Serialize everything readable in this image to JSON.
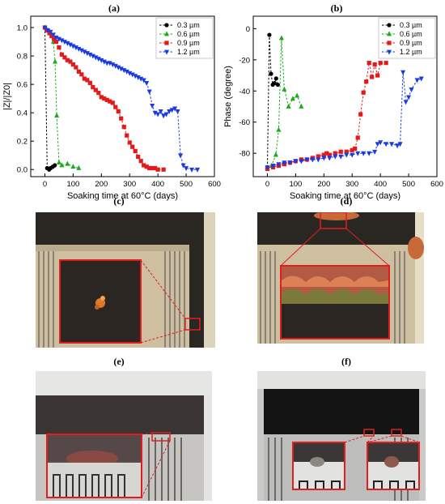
{
  "panel_labels": {
    "a": "(a)",
    "b": "(b)",
    "c": "(c)",
    "d": "(d)",
    "e": "(e)",
    "f": "(f)"
  },
  "chart_data": [
    {
      "type": "line",
      "ylabel": "|Z|/|Z0|",
      "xlabel": "Soaking time at 60°C (days)",
      "xlim": [
        -50,
        600
      ],
      "ylim": [
        -0.05,
        1.08
      ],
      "xticks": [
        0,
        100,
        200,
        300,
        400,
        500,
        600
      ],
      "yticks": [
        0.0,
        0.2,
        0.4,
        0.6,
        0.8,
        1.0
      ],
      "ytick_labels": [
        "0.0",
        "0.2",
        "0.4",
        "0.6",
        "0.8",
        "1.0"
      ],
      "legend_position": "top-right",
      "series": [
        {
          "name": "0.3 µm",
          "color": "#000000",
          "marker": "circle",
          "points": [
            [
              0,
              1.0
            ],
            [
              8,
              0.01
            ],
            [
              15,
              0.0
            ],
            [
              20,
              0.01
            ],
            [
              28,
              0.02
            ],
            [
              35,
              0.03
            ]
          ]
        },
        {
          "name": "0.6 µm",
          "color": "#1aaa1a",
          "marker": "triangle-up",
          "points": [
            [
              0,
              1.0
            ],
            [
              6,
              0.99
            ],
            [
              12,
              0.98
            ],
            [
              18,
              0.97
            ],
            [
              24,
              0.95
            ],
            [
              30,
              0.9
            ],
            [
              36,
              0.76
            ],
            [
              42,
              0.38
            ],
            [
              50,
              0.05
            ],
            [
              60,
              0.03
            ],
            [
              80,
              0.04
            ],
            [
              100,
              0.02
            ],
            [
              120,
              0.01
            ]
          ]
        },
        {
          "name": "0.9 µm",
          "color": "#e41a1a",
          "marker": "square",
          "points": [
            [
              0,
              1.0
            ],
            [
              8,
              0.98
            ],
            [
              16,
              0.96
            ],
            [
              24,
              0.94
            ],
            [
              32,
              0.92
            ],
            [
              40,
              0.9
            ],
            [
              50,
              0.86
            ],
            [
              60,
              0.81
            ],
            [
              70,
              0.79
            ],
            [
              80,
              0.77
            ],
            [
              90,
              0.76
            ],
            [
              100,
              0.74
            ],
            [
              110,
              0.72
            ],
            [
              120,
              0.69
            ],
            [
              130,
              0.67
            ],
            [
              140,
              0.64
            ],
            [
              150,
              0.63
            ],
            [
              160,
              0.61
            ],
            [
              170,
              0.58
            ],
            [
              180,
              0.56
            ],
            [
              190,
              0.54
            ],
            [
              200,
              0.51
            ],
            [
              210,
              0.5
            ],
            [
              220,
              0.49
            ],
            [
              230,
              0.48
            ],
            [
              240,
              0.47
            ],
            [
              250,
              0.44
            ],
            [
              260,
              0.41
            ],
            [
              270,
              0.36
            ],
            [
              280,
              0.3
            ],
            [
              290,
              0.24
            ],
            [
              300,
              0.19
            ],
            [
              310,
              0.16
            ],
            [
              320,
              0.13
            ],
            [
              330,
              0.09
            ],
            [
              340,
              0.06
            ],
            [
              350,
              0.03
            ],
            [
              360,
              0.02
            ],
            [
              370,
              0.01
            ],
            [
              380,
              0.01
            ],
            [
              390,
              0.01
            ],
            [
              400,
              0.0
            ],
            [
              420,
              0.0
            ]
          ]
        },
        {
          "name": "1.2 µm",
          "color": "#1a3ae4",
          "marker": "triangle-down",
          "points": [
            [
              0,
              1.0
            ],
            [
              10,
              0.98
            ],
            [
              20,
              0.97
            ],
            [
              30,
              0.95
            ],
            [
              40,
              0.93
            ],
            [
              50,
              0.92
            ],
            [
              60,
              0.91
            ],
            [
              70,
              0.9
            ],
            [
              80,
              0.89
            ],
            [
              90,
              0.88
            ],
            [
              100,
              0.87
            ],
            [
              110,
              0.86
            ],
            [
              120,
              0.85
            ],
            [
              130,
              0.84
            ],
            [
              140,
              0.83
            ],
            [
              150,
              0.82
            ],
            [
              160,
              0.81
            ],
            [
              170,
              0.8
            ],
            [
              180,
              0.79
            ],
            [
              190,
              0.78
            ],
            [
              200,
              0.77
            ],
            [
              210,
              0.76
            ],
            [
              220,
              0.75
            ],
            [
              230,
              0.75
            ],
            [
              240,
              0.74
            ],
            [
              250,
              0.73
            ],
            [
              260,
              0.72
            ],
            [
              270,
              0.71
            ],
            [
              280,
              0.7
            ],
            [
              290,
              0.69
            ],
            [
              300,
              0.68
            ],
            [
              310,
              0.67
            ],
            [
              320,
              0.66
            ],
            [
              330,
              0.65
            ],
            [
              340,
              0.64
            ],
            [
              350,
              0.63
            ],
            [
              360,
              0.61
            ],
            [
              370,
              0.55
            ],
            [
              380,
              0.45
            ],
            [
              390,
              0.4
            ],
            [
              400,
              0.39
            ],
            [
              410,
              0.41
            ],
            [
              420,
              0.38
            ],
            [
              430,
              0.39
            ],
            [
              440,
              0.41
            ],
            [
              450,
              0.42
            ],
            [
              460,
              0.43
            ],
            [
              470,
              0.41
            ],
            [
              480,
              0.1
            ],
            [
              490,
              0.03
            ],
            [
              500,
              0.01
            ],
            [
              520,
              0.0
            ],
            [
              540,
              0.0
            ]
          ]
        }
      ]
    },
    {
      "type": "line",
      "ylabel": "Phase (degree)",
      "xlabel": "Soaking time at 60°C (days)",
      "xlim": [
        -50,
        600
      ],
      "ylim": [
        -95,
        8
      ],
      "xticks": [
        0,
        100,
        200,
        300,
        400,
        500,
        600
      ],
      "yticks": [
        0,
        -20,
        -40,
        -60,
        -80
      ],
      "ytick_labels": [
        "0",
        "-20",
        "-40",
        "-60",
        "-80"
      ],
      "legend_position": "top-right",
      "series": [
        {
          "name": "0.3 µm",
          "color": "#000000",
          "marker": "circle",
          "points": [
            [
              0,
              -89
            ],
            [
              7,
              -4
            ],
            [
              13,
              -29
            ],
            [
              19,
              -36
            ],
            [
              25,
              -35
            ],
            [
              31,
              -32
            ],
            [
              37,
              -36
            ]
          ]
        },
        {
          "name": "0.6 µm",
          "color": "#1aaa1a",
          "marker": "triangle-up",
          "points": [
            [
              0,
              -89
            ],
            [
              15,
              -88
            ],
            [
              30,
              -81
            ],
            [
              40,
              -65
            ],
            [
              50,
              -6
            ],
            [
              60,
              -39
            ],
            [
              75,
              -50
            ],
            [
              90,
              -45
            ],
            [
              105,
              -43
            ],
            [
              120,
              -50
            ]
          ]
        },
        {
          "name": "0.9 µm",
          "color": "#e41a1a",
          "marker": "square",
          "points": [
            [
              0,
              -90
            ],
            [
              20,
              -89
            ],
            [
              40,
              -88
            ],
            [
              60,
              -87
            ],
            [
              80,
              -86
            ],
            [
              100,
              -85
            ],
            [
              120,
              -84
            ],
            [
              140,
              -84
            ],
            [
              160,
              -83
            ],
            [
              180,
              -82
            ],
            [
              200,
              -81
            ],
            [
              210,
              -80
            ],
            [
              220,
              -81
            ],
            [
              240,
              -80
            ],
            [
              260,
              -79
            ],
            [
              280,
              -79
            ],
            [
              300,
              -78
            ],
            [
              310,
              -77
            ],
            [
              320,
              -70
            ],
            [
              330,
              -55
            ],
            [
              340,
              -41
            ],
            [
              350,
              -34
            ],
            [
              360,
              -22
            ],
            [
              370,
              -31
            ],
            [
              380,
              -23
            ],
            [
              390,
              -30
            ],
            [
              400,
              -22
            ],
            [
              420,
              -22
            ]
          ]
        },
        {
          "name": "1.2 µm",
          "color": "#1a3ae4",
          "marker": "triangle-down",
          "points": [
            [
              0,
              -89
            ],
            [
              20,
              -88
            ],
            [
              40,
              -87
            ],
            [
              60,
              -86
            ],
            [
              80,
              -86
            ],
            [
              100,
              -85
            ],
            [
              120,
              -85
            ],
            [
              140,
              -84
            ],
            [
              160,
              -84
            ],
            [
              180,
              -84
            ],
            [
              200,
              -83
            ],
            [
              220,
              -83
            ],
            [
              240,
              -82
            ],
            [
              260,
              -82
            ],
            [
              280,
              -81
            ],
            [
              300,
              -81
            ],
            [
              320,
              -80
            ],
            [
              340,
              -80
            ],
            [
              360,
              -80
            ],
            [
              380,
              -79
            ],
            [
              390,
              -74
            ],
            [
              400,
              -73
            ],
            [
              420,
              -74
            ],
            [
              440,
              -74
            ],
            [
              460,
              -75
            ],
            [
              470,
              -74
            ],
            [
              480,
              -28
            ],
            [
              490,
              -47
            ],
            [
              500,
              -44
            ],
            [
              510,
              -39
            ],
            [
              530,
              -33
            ],
            [
              545,
              -32
            ]
          ]
        }
      ]
    }
  ],
  "colors": {
    "zoom_box": "#e01e1e",
    "frame": "#c8332a"
  }
}
